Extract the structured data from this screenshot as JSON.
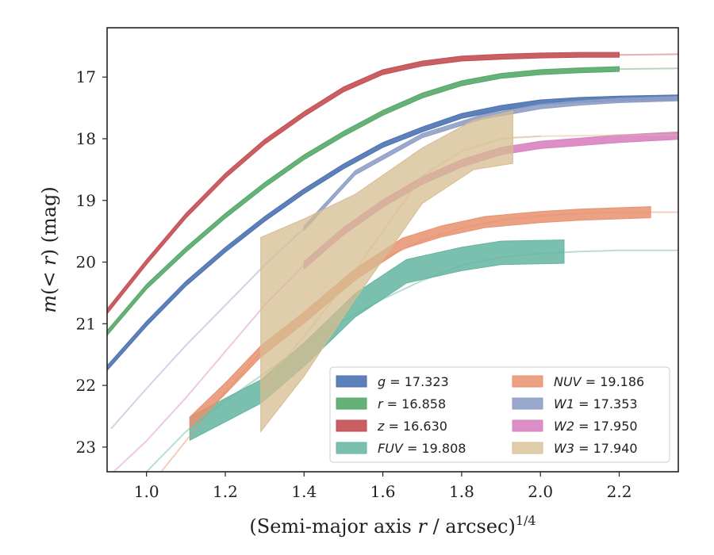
{
  "chart_data": {
    "type": "line",
    "xlabel": "(Semi-major axis r / arcsec)^{1/4}",
    "ylabel": "m(< r) (mag)",
    "xlim": [
      0.9,
      2.35
    ],
    "ylim": [
      23.4,
      16.2
    ],
    "y_inverted": true,
    "xticks": [
      "1.0",
      "1.2",
      "1.4",
      "1.6",
      "1.8",
      "2.0",
      "2.2"
    ],
    "yticks": [
      "17",
      "18",
      "19",
      "20",
      "21",
      "22",
      "23"
    ],
    "grid": false,
    "legend_position": "lower-right",
    "series": [
      {
        "name": "g = 17.323",
        "band": "g",
        "italic_name": true,
        "total_mag": "17.323",
        "color": "#4c72b0",
        "band_x": [
          0.9,
          1.0,
          1.1,
          1.2,
          1.3,
          1.4,
          1.5,
          1.6,
          1.7,
          1.8,
          1.9,
          2.0,
          2.1,
          2.2,
          2.35
        ],
        "band_y": [
          21.72,
          21.0,
          20.35,
          19.8,
          19.3,
          18.85,
          18.45,
          18.1,
          17.85,
          17.63,
          17.5,
          17.41,
          17.37,
          17.35,
          17.33
        ],
        "band_width": 0.08
      },
      {
        "name": "r = 16.858",
        "band": "r",
        "italic_name": true,
        "total_mag": "16.858",
        "color": "#55a868",
        "band_x": [
          0.9,
          1.0,
          1.1,
          1.2,
          1.3,
          1.4,
          1.5,
          1.6,
          1.7,
          1.8,
          1.9,
          2.0,
          2.1,
          2.2
        ],
        "band_y": [
          21.15,
          20.4,
          19.8,
          19.25,
          18.75,
          18.3,
          17.92,
          17.58,
          17.3,
          17.1,
          16.98,
          16.92,
          16.89,
          16.87
        ],
        "band_width": 0.08,
        "ext_x": [
          2.2,
          2.35
        ],
        "ext_y": [
          16.87,
          16.86
        ]
      },
      {
        "name": "z = 16.630",
        "band": "z",
        "italic_name": true,
        "total_mag": "16.630",
        "color": "#c44e52",
        "band_x": [
          0.9,
          1.0,
          1.1,
          1.2,
          1.3,
          1.4,
          1.5,
          1.6,
          1.7,
          1.8,
          1.9,
          2.0,
          2.1,
          2.2
        ],
        "band_y": [
          20.8,
          20.0,
          19.25,
          18.6,
          18.05,
          17.6,
          17.2,
          16.92,
          16.78,
          16.7,
          16.67,
          16.65,
          16.64,
          16.64
        ],
        "band_width": 0.08,
        "ext_x": [
          2.2,
          2.35
        ],
        "ext_y": [
          16.64,
          16.63
        ]
      },
      {
        "name": "FUV = 19.808",
        "band": "FUV",
        "italic_name": true,
        "total_mag": "19.808",
        "color": "#64b5a0",
        "band_x": [
          1.11,
          1.2,
          1.29,
          1.4,
          1.53,
          1.66,
          1.8,
          1.9,
          2.06
        ],
        "band_y": [
          22.7,
          22.4,
          22.1,
          21.5,
          20.7,
          20.15,
          19.95,
          19.85,
          19.83
        ],
        "band_width": 0.38,
        "ext_x": [
          0.9,
          1.0,
          1.1,
          1.2,
          1.3,
          1.4,
          1.5,
          1.6,
          1.7,
          1.8,
          1.9,
          2.0,
          2.1,
          2.2,
          2.35
        ],
        "ext_y": [
          24.6,
          23.4,
          22.75,
          22.25,
          21.8,
          21.35,
          20.95,
          20.6,
          20.3,
          20.05,
          19.92,
          19.86,
          19.83,
          19.81,
          19.81
        ]
      },
      {
        "name": "NUV = 19.186",
        "band": "NUV",
        "italic_name": true,
        "total_mag": "19.186",
        "color": "#e8916e",
        "band_x": [
          1.11,
          1.2,
          1.29,
          1.4,
          1.53,
          1.65,
          1.75,
          1.86,
          2.0,
          2.1,
          2.28
        ],
        "band_y": [
          22.6,
          22.05,
          21.45,
          20.9,
          20.2,
          19.7,
          19.5,
          19.35,
          19.27,
          19.23,
          19.19
        ],
        "band_width": 0.18,
        "ext_x": [
          0.9,
          1.0,
          1.1,
          1.2,
          1.3,
          1.4,
          1.5,
          1.6,
          1.7,
          1.8,
          1.9,
          2.0,
          2.1,
          2.2,
          2.35
        ],
        "ext_y": [
          24.6,
          23.7,
          22.9,
          22.1,
          21.4,
          20.85,
          20.35,
          19.95,
          19.65,
          19.45,
          19.32,
          19.25,
          19.21,
          19.19,
          19.19
        ]
      },
      {
        "name": "W1 = 17.353",
        "band": "W1",
        "italic_name": true,
        "total_mag": "17.353",
        "color": "#8f9fc6",
        "band_x": [
          1.4,
          1.53,
          1.7,
          1.85,
          2.0,
          2.1,
          2.2,
          2.35
        ],
        "band_y": [
          19.45,
          18.55,
          17.95,
          17.65,
          17.48,
          17.42,
          17.38,
          17.35
        ],
        "band_width": 0.07,
        "ext_x": [
          0.91,
          1.0,
          1.1,
          1.2,
          1.3,
          1.4
        ],
        "ext_y": [
          22.7,
          22.05,
          21.35,
          20.7,
          20.05,
          19.45
        ]
      },
      {
        "name": "W2 = 17.950",
        "band": "W2",
        "italic_name": true,
        "total_mag": "17.950",
        "color": "#d982c0",
        "band_x": [
          1.4,
          1.5,
          1.6,
          1.7,
          1.8,
          1.9,
          2.0,
          2.1,
          2.2,
          2.35
        ],
        "band_y": [
          20.05,
          19.5,
          19.05,
          18.68,
          18.4,
          18.2,
          18.1,
          18.05,
          18.0,
          17.95
        ],
        "band_width": 0.12,
        "ext_x": [
          0.9,
          1.0,
          1.1,
          1.2,
          1.3,
          1.4
        ],
        "ext_y": [
          23.5,
          22.9,
          22.2,
          21.45,
          20.7,
          20.05
        ]
      },
      {
        "name": "W3 = 17.940",
        "band": "W3",
        "italic_name": true,
        "total_mag": "17.940",
        "color": "#d6bc90",
        "band_upper_x": [
          1.29,
          1.4,
          1.53,
          1.7,
          1.83,
          1.93
        ],
        "band_upper_y": [
          19.6,
          19.3,
          18.9,
          18.15,
          17.7,
          17.55
        ],
        "band_lower_x": [
          1.29,
          1.4,
          1.53,
          1.7,
          1.83,
          1.93
        ],
        "band_lower_y": [
          22.75,
          21.85,
          20.6,
          19.05,
          18.5,
          18.4
        ],
        "ext_x": [
          1.29,
          1.4,
          1.5,
          1.6,
          1.7,
          1.8,
          1.9,
          2.0
        ],
        "ext_y": [
          22.05,
          21.2,
          20.4,
          19.5,
          18.6,
          18.2,
          18.0,
          17.96
        ],
        "ext2_x": [
          1.93,
          2.0,
          2.1,
          2.2,
          2.35
        ],
        "ext2_y": [
          17.98,
          17.96,
          17.95,
          17.94,
          17.94
        ]
      }
    ]
  }
}
